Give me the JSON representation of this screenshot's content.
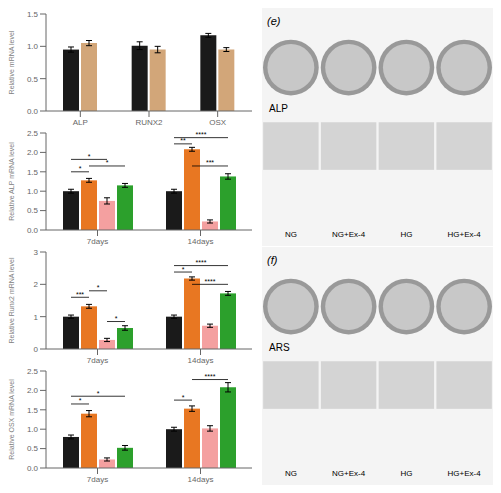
{
  "chart_data": [
    {
      "type": "bar",
      "categories": [
        "ALP",
        "RUNX2",
        "OSX"
      ],
      "series": [
        {
          "color": "#1a1a1a",
          "values": [
            0.95,
            1.01,
            1.17
          ],
          "errors": [
            0.04,
            0.06,
            0.03
          ]
        },
        {
          "color": "#D2A679",
          "values": [
            1.05,
            0.95,
            0.95
          ],
          "errors": [
            0.04,
            0.05,
            0.03
          ]
        }
      ],
      "ylabel": "Relative mRNA level",
      "ylim": [
        0,
        1.5
      ],
      "yticks": [
        {
          "value": 0,
          "label": "0.0"
        },
        0.5,
        {
          "value": 1,
          "label": "1.0"
        },
        1.5
      ]
    },
    {
      "type": "bar",
      "categories": [
        "7days",
        "14days"
      ],
      "series": [
        {
          "color": "#1a1a1a",
          "values": [
            1.0,
            1.0
          ],
          "errors": [
            0.05,
            0.05
          ]
        },
        {
          "color": "#E87722",
          "values": [
            1.28,
            2.08
          ],
          "errors": [
            0.05,
            0.05
          ]
        },
        {
          "color": "#F4A0A0",
          "values": [
            0.75,
            0.22
          ],
          "errors": [
            0.08,
            0.04
          ]
        },
        {
          "color": "#2CA02C",
          "values": [
            1.15,
            1.38
          ],
          "errors": [
            0.05,
            0.07
          ]
        }
      ],
      "ylabel": "Relative ALP mRNA level",
      "ylim": [
        0,
        2.5
      ],
      "yticks": [
        {
          "value": 0,
          "label": "0.0"
        },
        0.5,
        {
          "value": 1,
          "label": "1.0"
        },
        1.5,
        {
          "value": 2,
          "label": "2.0"
        },
        2.5
      ],
      "annotations": [
        {
          "text": "*",
          "category": "7days",
          "from": 0,
          "to": 1,
          "y": 1.5
        },
        {
          "text": "*",
          "category": "7days",
          "from": 1,
          "to": 3,
          "y": 1.65
        },
        {
          "text": "*",
          "category": "7days",
          "from": 0,
          "to": 2,
          "y": 1.82
        },
        {
          "text": "***",
          "category": "14days",
          "from": 1,
          "to": 3,
          "y": 1.65
        },
        {
          "text": "**",
          "category": "14days",
          "from": 0,
          "to": 1,
          "y": 2.22
        },
        {
          "text": "****",
          "category": "14days",
          "from": 0,
          "to": 3,
          "y": 2.38
        }
      ]
    },
    {
      "type": "bar",
      "categories": [
        "7days",
        "14days"
      ],
      "series": [
        {
          "color": "#1a1a1a",
          "values": [
            1.0,
            1.0
          ],
          "errors": [
            0.05,
            0.05
          ]
        },
        {
          "color": "#E87722",
          "values": [
            1.32,
            2.18
          ],
          "errors": [
            0.06,
            0.05
          ]
        },
        {
          "color": "#F4A0A0",
          "values": [
            0.28,
            0.72
          ],
          "errors": [
            0.05,
            0.05
          ]
        },
        {
          "color": "#2CA02C",
          "values": [
            0.65,
            1.72
          ],
          "errors": [
            0.07,
            0.06
          ]
        }
      ],
      "ylabel": "Relative Runx2 mRNA level",
      "ylim": [
        0,
        3.0
      ],
      "yticks": [
        0,
        1,
        2,
        3
      ],
      "annotations": [
        {
          "text": "***",
          "category": "7days",
          "from": 0,
          "to": 1,
          "y": 1.6
        },
        {
          "text": "*",
          "category": "7days",
          "from": 1,
          "to": 2,
          "y": 1.8
        },
        {
          "text": "*",
          "category": "7days",
          "from": 2,
          "to": 3,
          "y": 0.85
        },
        {
          "text": "****",
          "category": "14days",
          "from": 1,
          "to": 3,
          "y": 2.0
        },
        {
          "text": "*",
          "category": "14days",
          "from": 0,
          "to": 1,
          "y": 2.38
        },
        {
          "text": "****",
          "category": "14days",
          "from": 0,
          "to": 3,
          "y": 2.58
        }
      ]
    },
    {
      "type": "bar",
      "categories": [
        "7days",
        "14days"
      ],
      "series": [
        {
          "color": "#1a1a1a",
          "values": [
            0.8,
            1.0
          ],
          "errors": [
            0.05,
            0.05
          ]
        },
        {
          "color": "#E87722",
          "values": [
            1.4,
            1.53
          ],
          "errors": [
            0.08,
            0.07
          ]
        },
        {
          "color": "#F4A0A0",
          "values": [
            0.22,
            1.02
          ],
          "errors": [
            0.04,
            0.07
          ]
        },
        {
          "color": "#2CA02C",
          "values": [
            0.52,
            2.08
          ],
          "errors": [
            0.06,
            0.12
          ]
        }
      ],
      "ylabel": "Relative OSX mRNA level",
      "ylim": [
        0,
        2.5
      ],
      "yticks": [
        {
          "value": 0,
          "label": "0.0"
        },
        0.5,
        {
          "value": 1,
          "label": "1.0"
        },
        1.5,
        {
          "value": 2,
          "label": "2.0"
        },
        2.5
      ],
      "annotations": [
        {
          "text": "*",
          "category": "7days",
          "from": 0,
          "to": 1,
          "y": 1.65
        },
        {
          "text": "*",
          "category": "7days",
          "from": 0,
          "to": 3,
          "y": 1.85
        },
        {
          "text": "*",
          "category": "14days",
          "from": 0,
          "to": 1,
          "y": 1.75
        },
        {
          "text": "****",
          "category": "14days",
          "from": 1,
          "to": 3,
          "y": 2.28
        }
      ]
    },
    {
      "type": "image",
      "title": "(e)",
      "annotations": [
        {
          "text": "ALP"
        }
      ],
      "categories": [
        "NG",
        "NG+Ex-4",
        "HG",
        "HG+Ex-4"
      ]
    },
    {
      "type": "image",
      "title": "(f)",
      "annotations": [
        {
          "text": "ARS"
        }
      ],
      "categories": [
        "NG",
        "NG+Ex-4",
        "HG",
        "HG+Ex-4"
      ]
    }
  ]
}
